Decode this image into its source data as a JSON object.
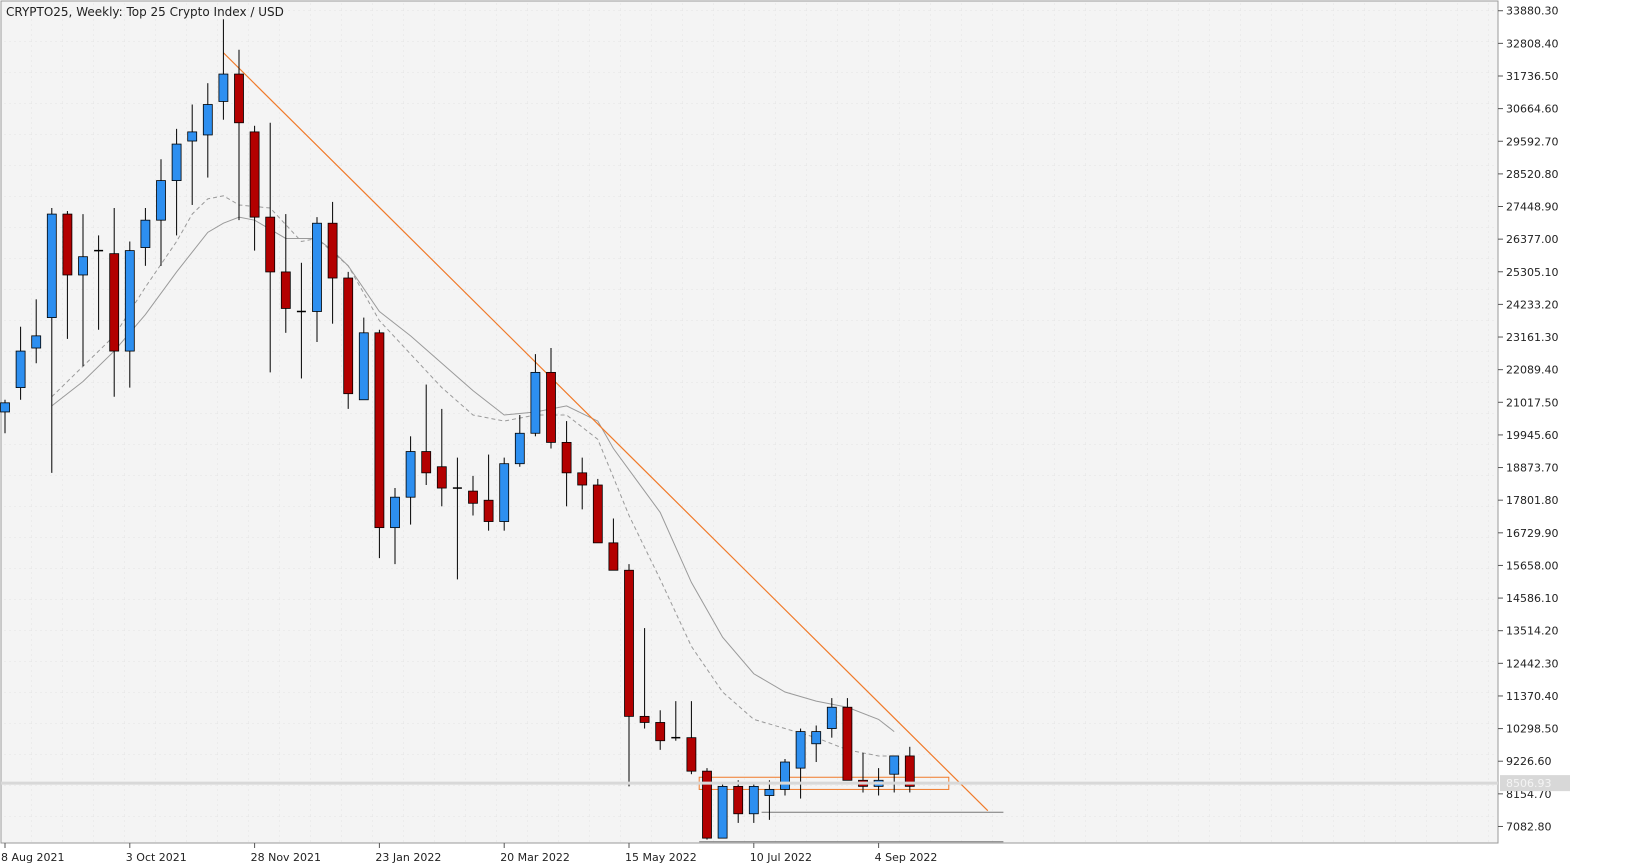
{
  "chart_data": {
    "type": "candlestick",
    "title": "CRYPTO25, Weekly:  Top 25 Crypto Index / USD",
    "y_ticks": [
      "33880.30",
      "32808.40",
      "31736.50",
      "30664.60",
      "29592.70",
      "28520.80",
      "27448.90",
      "26377.00",
      "25305.10",
      "24233.20",
      "23161.30",
      "22089.40",
      "21017.50",
      "19945.60",
      "18873.70",
      "17801.80",
      "16729.90",
      "15658.00",
      "14586.10",
      "13514.20",
      "12442.30",
      "11370.40",
      "10298.50",
      "9226.60",
      "8154.70",
      "7082.80"
    ],
    "ylim": [
      6540,
      34200
    ],
    "x_labels": [
      {
        "i": 0,
        "label": "8 Aug 2021"
      },
      {
        "i": 8,
        "label": "3 Oct 2021"
      },
      {
        "i": 16,
        "label": "28 Nov 2021"
      },
      {
        "i": 24,
        "label": "23 Jan 2022"
      },
      {
        "i": 32,
        "label": "20 Mar 2022"
      },
      {
        "i": 40,
        "label": "15 May 2022"
      },
      {
        "i": 48,
        "label": "10 Jul 2022"
      },
      {
        "i": 56,
        "label": "4 Sep 2022"
      }
    ],
    "current_price": "8506.93",
    "up_color": "#2d8ff0",
    "down_color": "#b30000",
    "trendline_color": "#f07a2a",
    "candles": [
      {
        "o": 20700,
        "h": 21100,
        "l": 20000,
        "c": 21000
      },
      {
        "o": 21500,
        "h": 23500,
        "l": 21100,
        "c": 22700
      },
      {
        "o": 22800,
        "h": 24400,
        "l": 22300,
        "c": 23200
      },
      {
        "o": 23800,
        "h": 27400,
        "l": 18700,
        "c": 27200
      },
      {
        "o": 27200,
        "h": 27300,
        "l": 23100,
        "c": 25200
      },
      {
        "o": 25200,
        "h": 27200,
        "l": 22200,
        "c": 25800
      },
      {
        "o": 26000,
        "h": 26500,
        "l": 23400,
        "c": 26000
      },
      {
        "o": 25900,
        "h": 27400,
        "l": 21200,
        "c": 22700
      },
      {
        "o": 22700,
        "h": 26300,
        "l": 21500,
        "c": 26000
      },
      {
        "o": 26100,
        "h": 27400,
        "l": 25500,
        "c": 27000
      },
      {
        "o": 27000,
        "h": 29000,
        "l": 25500,
        "c": 28300
      },
      {
        "o": 28300,
        "h": 30000,
        "l": 26500,
        "c": 29500
      },
      {
        "o": 29600,
        "h": 30800,
        "l": 27500,
        "c": 29900
      },
      {
        "o": 29800,
        "h": 31500,
        "l": 28400,
        "c": 30800
      },
      {
        "o": 30900,
        "h": 33600,
        "l": 30300,
        "c": 31800
      },
      {
        "o": 31800,
        "h": 32600,
        "l": 27000,
        "c": 30200
      },
      {
        "o": 29900,
        "h": 30100,
        "l": 26000,
        "c": 27100
      },
      {
        "o": 27100,
        "h": 30200,
        "l": 22000,
        "c": 25300
      },
      {
        "o": 25300,
        "h": 27200,
        "l": 23300,
        "c": 24100
      },
      {
        "o": 24000,
        "h": 25600,
        "l": 21800,
        "c": 24000
      },
      {
        "o": 24000,
        "h": 27100,
        "l": 23000,
        "c": 26900
      },
      {
        "o": 26900,
        "h": 27600,
        "l": 23600,
        "c": 25100
      },
      {
        "o": 25100,
        "h": 25300,
        "l": 20800,
        "c": 21300
      },
      {
        "o": 21100,
        "h": 23800,
        "l": 21100,
        "c": 23300
      },
      {
        "o": 23300,
        "h": 23400,
        "l": 15900,
        "c": 16900
      },
      {
        "o": 16900,
        "h": 18200,
        "l": 15700,
        "c": 17900
      },
      {
        "o": 17900,
        "h": 19900,
        "l": 17000,
        "c": 19400
      },
      {
        "o": 19400,
        "h": 21600,
        "l": 18300,
        "c": 18700
      },
      {
        "o": 18900,
        "h": 20800,
        "l": 17600,
        "c": 18200
      },
      {
        "o": 18200,
        "h": 19200,
        "l": 15200,
        "c": 18200
      },
      {
        "o": 18100,
        "h": 18600,
        "l": 17300,
        "c": 17700
      },
      {
        "o": 17800,
        "h": 19300,
        "l": 16800,
        "c": 17100
      },
      {
        "o": 17100,
        "h": 19200,
        "l": 16800,
        "c": 19000
      },
      {
        "o": 19000,
        "h": 20600,
        "l": 18900,
        "c": 20000
      },
      {
        "o": 20000,
        "h": 22600,
        "l": 19900,
        "c": 22000
      },
      {
        "o": 22000,
        "h": 22800,
        "l": 19500,
        "c": 19700
      },
      {
        "o": 19700,
        "h": 20400,
        "l": 17600,
        "c": 18700
      },
      {
        "o": 18700,
        "h": 19200,
        "l": 17500,
        "c": 18300
      },
      {
        "o": 18300,
        "h": 18500,
        "l": 16400,
        "c": 16400
      },
      {
        "o": 16400,
        "h": 17200,
        "l": 15600,
        "c": 15500
      },
      {
        "o": 15500,
        "h": 15700,
        "l": 8400,
        "c": 10700
      },
      {
        "o": 10700,
        "h": 13600,
        "l": 10300,
        "c": 10500
      },
      {
        "o": 10500,
        "h": 10900,
        "l": 9600,
        "c": 9900
      },
      {
        "o": 10000,
        "h": 11200,
        "l": 9900,
        "c": 10000
      },
      {
        "o": 10000,
        "h": 11200,
        "l": 8800,
        "c": 8900
      },
      {
        "o": 8900,
        "h": 9000,
        "l": 6650,
        "c": 6700
      },
      {
        "o": 6700,
        "h": 8500,
        "l": 6700,
        "c": 8400
      },
      {
        "o": 8400,
        "h": 8600,
        "l": 7200,
        "c": 7500
      },
      {
        "o": 7500,
        "h": 8500,
        "l": 7200,
        "c": 8400
      },
      {
        "o": 8100,
        "h": 8600,
        "l": 7300,
        "c": 8300
      },
      {
        "o": 8300,
        "h": 9300,
        "l": 8100,
        "c": 9200
      },
      {
        "o": 9000,
        "h": 10300,
        "l": 8000,
        "c": 10200
      },
      {
        "o": 9800,
        "h": 10400,
        "l": 9200,
        "c": 10200
      },
      {
        "o": 10300,
        "h": 11300,
        "l": 10000,
        "c": 11000
      },
      {
        "o": 11000,
        "h": 11300,
        "l": 8700,
        "c": 8600
      },
      {
        "o": 8600,
        "h": 9500,
        "l": 8200,
        "c": 8400
      },
      {
        "o": 8400,
        "h": 9000,
        "l": 8100,
        "c": 8600
      },
      {
        "o": 8800,
        "h": 9300,
        "l": 8200,
        "c": 9400
      },
      {
        "o": 9400,
        "h": 9700,
        "l": 8200,
        "c": 8400
      }
    ],
    "ma_fast": [
      [
        3,
        21200
      ],
      [
        5,
        22200
      ],
      [
        7,
        23200
      ],
      [
        9,
        24800
      ],
      [
        11,
        26300
      ],
      [
        12,
        27200
      ],
      [
        13,
        27700
      ],
      [
        14,
        27800
      ],
      [
        15,
        27500
      ],
      [
        17,
        27400
      ],
      [
        19,
        26300
      ],
      [
        20,
        26400
      ],
      [
        22,
        25500
      ],
      [
        24,
        23700
      ],
      [
        26,
        22600
      ],
      [
        28,
        21500
      ],
      [
        30,
        20600
      ],
      [
        32,
        20400
      ],
      [
        34,
        20600
      ],
      [
        36,
        20600
      ],
      [
        38,
        19800
      ],
      [
        40,
        17300
      ],
      [
        42,
        15200
      ],
      [
        44,
        13000
      ],
      [
        46,
        11500
      ],
      [
        48,
        10600
      ],
      [
        50,
        10300
      ],
      [
        52,
        10000
      ],
      [
        54,
        9600
      ],
      [
        56,
        9400
      ],
      [
        57,
        9400
      ]
    ],
    "ma_slow": [
      [
        3,
        20900
      ],
      [
        5,
        21700
      ],
      [
        7,
        22700
      ],
      [
        9,
        23900
      ],
      [
        11,
        25300
      ],
      [
        13,
        26600
      ],
      [
        14,
        26900
      ],
      [
        15,
        27100
      ],
      [
        16,
        27000
      ],
      [
        18,
        26400
      ],
      [
        20,
        26400
      ],
      [
        21,
        26000
      ],
      [
        22,
        25500
      ],
      [
        24,
        24000
      ],
      [
        26,
        23200
      ],
      [
        28,
        22300
      ],
      [
        30,
        21400
      ],
      [
        32,
        20600
      ],
      [
        34,
        20700
      ],
      [
        36,
        20900
      ],
      [
        38,
        20400
      ],
      [
        39,
        19500
      ],
      [
        42,
        17400
      ],
      [
        44,
        15100
      ],
      [
        46,
        13300
      ],
      [
        48,
        12100
      ],
      [
        50,
        11500
      ],
      [
        52,
        11200
      ],
      [
        54,
        11000
      ],
      [
        56,
        10600
      ],
      [
        57,
        10200
      ]
    ],
    "trendline": {
      "from": [
        14,
        32500
      ],
      "to": [
        63,
        7600
      ]
    },
    "support_box": {
      "from_i": 44.5,
      "to_i": 60.5,
      "high": 8700,
      "low": 8300
    },
    "level_lines": [
      {
        "from_i": 48.5,
        "to_i": 64,
        "y": 7550
      },
      {
        "from_i": 44.5,
        "to_i": 64,
        "y": 6580
      }
    ]
  }
}
